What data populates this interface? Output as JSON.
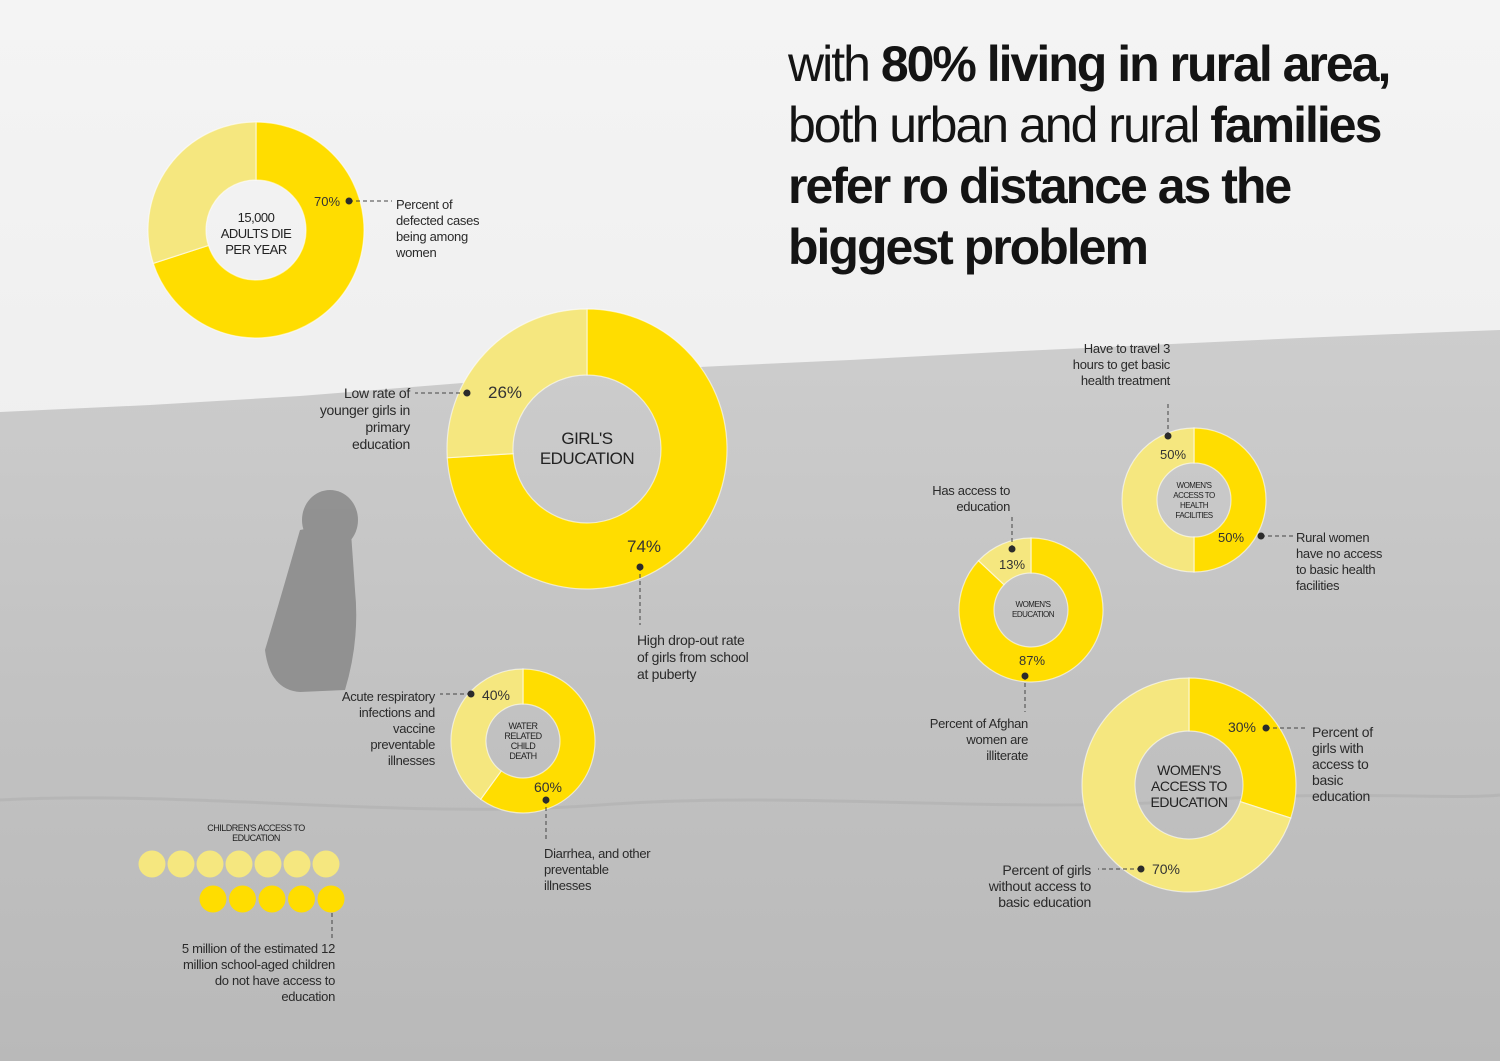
{
  "headline": {
    "l1a": "with ",
    "l1b": "80% living in rural area,",
    "l2a": "both urban and rural ",
    "l2b": "families",
    "l3": "refer ro distance as the",
    "l4": "biggest problem"
  },
  "colors": {
    "yellow": "#ffdd00",
    "light_yellow": "#f5e77f",
    "dot": "#2b2b2b",
    "sky": "#efefef",
    "ground": "#c9c9c9"
  },
  "labels": {
    "adults_center": "15,000 ADULTS DIE PER YEAR",
    "adults_note": "Percent of defected cases being among women",
    "girls_center": "GIRL'S EDUCATION",
    "girls_low": "Low rate of younger girls in primary education",
    "girls_drop": "High drop-out rate of girls from school at puberty",
    "water_center": "WATER RELATED CHILD DEATH",
    "water_acute": "Acute respiratory infections and vaccine preventable illnesses",
    "water_diarrhea": "Diarrhea, and other preventable illnesses",
    "children_title": "CHILDREN'S ACCESS TO EDUCATION",
    "children_note": "5 million of the estimated 12 million school-aged children do not have access to education",
    "health_center": "WOMEN'S ACCESS TO HEALTH FACILITIES",
    "health_travel": "Have to travel 3 hours to get basic health treatment",
    "health_rural": "Rural women have no access to basic health facilities",
    "wedu_center": "WOMEN'S EDUCATION",
    "wedu_access": "Has access to education",
    "wedu_illiterate": "Percent of Afghan women are illiterate",
    "wacc_center": "WOMEN'S ACCESS TO EDUCATION",
    "wacc_with": "Percent of girls with access to basic education",
    "wacc_without": "Percent of girls without access to basic education"
  },
  "chart_data": [
    {
      "type": "pie",
      "title": "15,000 ADULTS DIE PER YEAR",
      "slices": [
        {
          "label": "70%",
          "value": 70,
          "desc": "Percent of defected cases being among women"
        },
        {
          "label": "",
          "value": 30
        }
      ]
    },
    {
      "type": "pie",
      "title": "GIRL'S EDUCATION",
      "slices": [
        {
          "label": "74%",
          "value": 74,
          "desc": "High drop-out rate of girls from school at puberty"
        },
        {
          "label": "26%",
          "value": 26,
          "desc": "Low rate of younger girls in primary education"
        }
      ]
    },
    {
      "type": "pie",
      "title": "WATER RELATED CHILD DEATH",
      "slices": [
        {
          "label": "60%",
          "value": 60,
          "desc": "Diarrhea, and other preventable illnesses"
        },
        {
          "label": "40%",
          "value": 40,
          "desc": "Acute respiratory infections and vaccine preventable illnesses"
        }
      ]
    },
    {
      "type": "pie",
      "title": "WOMEN'S ACCESS TO HEALTH FACILITIES",
      "slices": [
        {
          "label": "50%",
          "value": 50,
          "desc": "Rural women have no access to basic health facilities"
        },
        {
          "label": "50%",
          "value": 50,
          "desc": "Have to travel 3 hours to get basic health treatment"
        }
      ]
    },
    {
      "type": "pie",
      "title": "WOMEN'S EDUCATION",
      "slices": [
        {
          "label": "87%",
          "value": 87,
          "desc": "Percent of Afghan women are illiterate"
        },
        {
          "label": "13%",
          "value": 13,
          "desc": "Has access to education"
        }
      ]
    },
    {
      "type": "pie",
      "title": "WOMEN'S ACCESS TO EDUCATION",
      "slices": [
        {
          "label": "30%",
          "value": 30,
          "desc": "Percent of girls with access to basic education"
        },
        {
          "label": "70%",
          "value": 70,
          "desc": "Percent of girls without access to basic education"
        }
      ]
    },
    {
      "type": "pictogram",
      "title": "CHILDREN'S ACCESS TO EDUCATION",
      "total": 12,
      "highlighted": 5,
      "desc": "5 million of the estimated 12 million school-aged children do not have access to education"
    }
  ]
}
